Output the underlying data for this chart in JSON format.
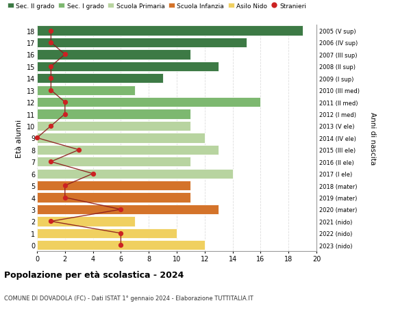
{
  "ages": [
    18,
    17,
    16,
    15,
    14,
    13,
    12,
    11,
    10,
    9,
    8,
    7,
    6,
    5,
    4,
    3,
    2,
    1,
    0
  ],
  "right_labels": [
    "2005 (V sup)",
    "2006 (IV sup)",
    "2007 (III sup)",
    "2008 (II sup)",
    "2009 (I sup)",
    "2010 (III med)",
    "2011 (II med)",
    "2012 (I med)",
    "2013 (V ele)",
    "2014 (IV ele)",
    "2015 (III ele)",
    "2016 (II ele)",
    "2017 (I ele)",
    "2018 (mater)",
    "2019 (mater)",
    "2020 (mater)",
    "2021 (nido)",
    "2022 (nido)",
    "2023 (nido)"
  ],
  "bar_values": [
    19,
    15,
    11,
    13,
    9,
    7,
    16,
    11,
    11,
    12,
    13,
    11,
    14,
    11,
    11,
    13,
    7,
    10,
    12
  ],
  "stranieri_values": [
    1,
    1,
    2,
    1,
    1,
    1,
    2,
    2,
    1,
    0,
    3,
    1,
    4,
    2,
    2,
    6,
    1,
    6,
    6
  ],
  "bar_colors": [
    "#3d7a45",
    "#3d7a45",
    "#3d7a45",
    "#3d7a45",
    "#3d7a45",
    "#7db870",
    "#7db870",
    "#7db870",
    "#b8d4a0",
    "#b8d4a0",
    "#b8d4a0",
    "#b8d4a0",
    "#b8d4a0",
    "#d4732a",
    "#d4732a",
    "#d4732a",
    "#f0d060",
    "#f0d060",
    "#f0d060"
  ],
  "legend_labels": [
    "Sec. II grado",
    "Sec. I grado",
    "Scuola Primaria",
    "Scuola Infanzia",
    "Asilo Nido",
    "Stranieri"
  ],
  "legend_colors_list": [
    "#3d7a45",
    "#7db870",
    "#b8d4a0",
    "#d4732a",
    "#f0d060",
    "#cc2222"
  ],
  "stranieri_line_color": "#8b1a1a",
  "stranieri_marker_color": "#cc2222",
  "title": "Popolazione per età scolastica - 2024",
  "subtitle": "COMUNE DI DOVADOLA (FC) - Dati ISTAT 1° gennaio 2024 - Elaborazione TUTTITALIA.IT",
  "ylabel": "Età alunni",
  "ylabel2": "Anni di nascita",
  "xlabel_values": [
    0,
    2,
    4,
    6,
    8,
    10,
    12,
    14,
    16,
    18,
    20
  ],
  "xlim": [
    0,
    20
  ],
  "ylim": [
    -0.5,
    18.5
  ],
  "grid_color": "#dddddd",
  "bar_height": 0.82
}
